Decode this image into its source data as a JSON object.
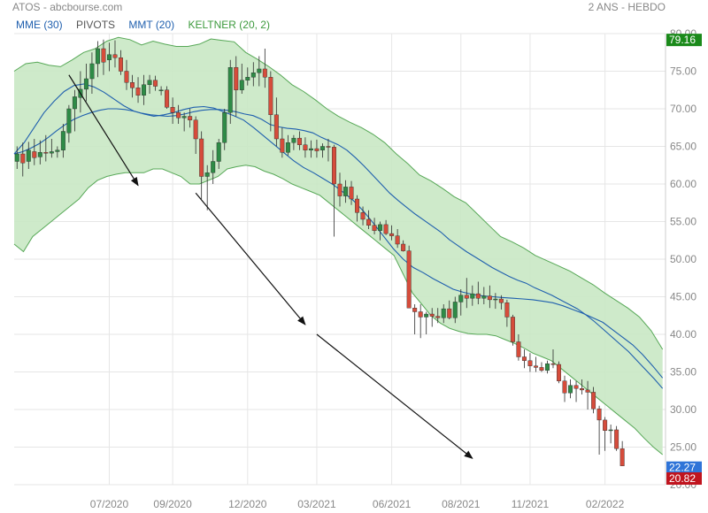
{
  "header": {
    "title": "ATOS - abcbourse.com",
    "period": "2 ANS - HEBDO"
  },
  "legend": [
    {
      "label": "MME (30)",
      "color": "#1f5fae"
    },
    {
      "label": "PIVOTS",
      "color": "#555555"
    },
    {
      "label": "MMT (20)",
      "color": "#1f5fae"
    },
    {
      "label": "KELTNER (20, 2)",
      "color": "#3d9a3d"
    }
  ],
  "price_labels": [
    {
      "value": "79.16",
      "color": "#1a8a1a"
    },
    {
      "value": "22.27",
      "color": "#2f74d8"
    },
    {
      "value": "20.82",
      "color": "#c0141e"
    }
  ],
  "chart_data": {
    "type": "candlestick",
    "title": "ATOS",
    "yaxis": {
      "min": 20,
      "max": 80,
      "position": "right",
      "ticks": [
        "20.00",
        "25.00",
        "30.00",
        "35.00",
        "40.00",
        "45.00",
        "50.00",
        "55.00",
        "60.00",
        "65.00",
        "70.00",
        "75.00",
        "80.00"
      ]
    },
    "xaxis": {
      "ticks": [
        "07/2020",
        "09/2020",
        "12/2020",
        "03/2021",
        "06/2021",
        "08/2021",
        "11/2021",
        "02/2022"
      ],
      "tick_week": [
        16,
        27,
        40,
        52,
        65,
        77,
        89,
        102
      ],
      "weeks": 113
    },
    "grid": true,
    "colors": {
      "up": "#2e8b46",
      "down": "#d64c3b",
      "band": "#c9e8c4",
      "band_line": "#57a857",
      "ma": "#1f5fae"
    },
    "candles_ohlc": [
      [
        63,
        65,
        62,
        64
      ],
      [
        64,
        65.5,
        61,
        62.8
      ],
      [
        63,
        65.6,
        62,
        64.5
      ],
      [
        64.3,
        66,
        62.5,
        63.5
      ],
      [
        63.6,
        65.8,
        62.6,
        64.2
      ],
      [
        64.2,
        66.5,
        63,
        64.1
      ],
      [
        64.1,
        66,
        63.5,
        64.3
      ],
      [
        64.3,
        65,
        63.5,
        64.5
      ],
      [
        64.5,
        68,
        63.5,
        67
      ],
      [
        66.8,
        70.5,
        65.5,
        70
      ],
      [
        70,
        72.5,
        67,
        71.6
      ],
      [
        71.5,
        75,
        69.5,
        72.6
      ],
      [
        72.6,
        76,
        71,
        74
      ],
      [
        74,
        77.5,
        72,
        76
      ],
      [
        76,
        79,
        74.2,
        78
      ],
      [
        78,
        79.2,
        74.5,
        76.2
      ],
      [
        76.5,
        78.8,
        75,
        77.2
      ],
      [
        77.2,
        79.1,
        75.5,
        76.8
      ],
      [
        76.8,
        77.8,
        74.5,
        75
      ],
      [
        75,
        76.5,
        72.5,
        73.5
      ],
      [
        73.5,
        74.5,
        71.5,
        72.8
      ],
      [
        72.8,
        74.2,
        70.8,
        71.8
      ],
      [
        71.8,
        74.5,
        70.5,
        73.2
      ],
      [
        73.2,
        74.5,
        72,
        73.8
      ],
      [
        73.8,
        74.4,
        72.4,
        73
      ],
      [
        72.4,
        73,
        71.8,
        72.5
      ],
      [
        72.5,
        73,
        70,
        70.2
      ],
      [
        70.2,
        71.5,
        68,
        69.5
      ],
      [
        69.5,
        70.5,
        68,
        68.8
      ],
      [
        68.8,
        69.5,
        67,
        69
      ],
      [
        69,
        70,
        67.5,
        68.5
      ],
      [
        68.5,
        69,
        64,
        66
      ],
      [
        66,
        67,
        58,
        61
      ],
      [
        61,
        62.5,
        56.5,
        61.5
      ],
      [
        61.5,
        64.5,
        60,
        63
      ],
      [
        63,
        66,
        62,
        65.5
      ],
      [
        65.5,
        70,
        64.5,
        69.5
      ],
      [
        69.5,
        76.5,
        68,
        75.5
      ],
      [
        75.5,
        77,
        69,
        72.5
      ],
      [
        72.5,
        76,
        72,
        73.8
      ],
      [
        73.8,
        75.5,
        73.1,
        74.2
      ],
      [
        74.2,
        76.2,
        73,
        74.8
      ],
      [
        74.8,
        77,
        73,
        75.3
      ],
      [
        75.3,
        78,
        72.8,
        74.2
      ],
      [
        74.2,
        75,
        67,
        69.2
      ],
      [
        69.2,
        71.5,
        65,
        66
      ],
      [
        66,
        67.5,
        63.5,
        64.2
      ],
      [
        64.2,
        66.5,
        63.8,
        65.5
      ],
      [
        65.5,
        66.5,
        64.5,
        66.1
      ],
      [
        66.1,
        67,
        64.5,
        65.2
      ],
      [
        65.2,
        66.2,
        63.5,
        64.5
      ],
      [
        64.5,
        65.8,
        63.5,
        64.7
      ],
      [
        64.7,
        65.9,
        63.5,
        64.4
      ],
      [
        64.5,
        65.4,
        63.5,
        65
      ],
      [
        65,
        66,
        63,
        64.9
      ],
      [
        64.9,
        65.2,
        53,
        60
      ],
      [
        60,
        61.5,
        57,
        58.4
      ],
      [
        58.4,
        60.5,
        57.5,
        59.6
      ],
      [
        59.6,
        60.4,
        57.2,
        58
      ],
      [
        58,
        58.5,
        55,
        56.2
      ],
      [
        56.2,
        57,
        54.5,
        55.3
      ],
      [
        55.3,
        56.5,
        54,
        54.5
      ],
      [
        54.5,
        55.5,
        53.3,
        53.8
      ],
      [
        53.8,
        55,
        52.5,
        54.6
      ],
      [
        54.6,
        55.2,
        53.2,
        53.4
      ],
      [
        53.4,
        54.5,
        52.5,
        53.1
      ],
      [
        53.1,
        54,
        51.5,
        52
      ],
      [
        52,
        52.5,
        51,
        51.1
      ],
      [
        51.1,
        51.8,
        45,
        43.5
      ],
      [
        43.5,
        44,
        40,
        43
      ],
      [
        43,
        44,
        39.5,
        42.3
      ],
      [
        42.3,
        43,
        40,
        42.7
      ],
      [
        42.7,
        43.5,
        41,
        42.4
      ],
      [
        42.4,
        43.5,
        41.5,
        42.2
      ],
      [
        42.2,
        44,
        41.5,
        43.4
      ],
      [
        43.4,
        44.5,
        42,
        42.2
      ],
      [
        42.2,
        45,
        41.5,
        44.3
      ],
      [
        44.3,
        46,
        42.5,
        45.2
      ],
      [
        45.2,
        47.5,
        43.5,
        44.8
      ],
      [
        44.8,
        46.5,
        43.8,
        45.4
      ],
      [
        45.4,
        47,
        44,
        44.8
      ],
      [
        44.8,
        46.3,
        44,
        45.1
      ],
      [
        45.1,
        46.5,
        43.5,
        44.6
      ],
      [
        44.6,
        45.5,
        43.4,
        44.7
      ],
      [
        44.7,
        45.2,
        43.3,
        44.2
      ],
      [
        44.2,
        44.6,
        41,
        42.3
      ],
      [
        42.3,
        42.6,
        38.5,
        39
      ],
      [
        39,
        40,
        36.5,
        37
      ],
      [
        37,
        38,
        35.5,
        36.5
      ],
      [
        36.5,
        37.5,
        35,
        35.8
      ],
      [
        35.8,
        37,
        35,
        35.6
      ],
      [
        35.6,
        36.3,
        35,
        35.2
      ],
      [
        35.2,
        36.5,
        34.8,
        36.1
      ],
      [
        36.1,
        38,
        35.5,
        36
      ],
      [
        36,
        36.4,
        33.5,
        33.8
      ],
      [
        33.8,
        34.5,
        31,
        32.2
      ],
      [
        32.2,
        34,
        31.5,
        33.2
      ],
      [
        33.2,
        33.8,
        31,
        32.8
      ],
      [
        32.8,
        34,
        32,
        32.6
      ],
      [
        32.6,
        33.8,
        30,
        32.3
      ],
      [
        32.3,
        33,
        29.5,
        30.1
      ],
      [
        30.1,
        30.5,
        24,
        28.6
      ],
      [
        28.6,
        29,
        24.5,
        27.2
      ],
      [
        27.2,
        28,
        25.5,
        27.3
      ],
      [
        27.3,
        27.8,
        24.5,
        24.8
      ],
      [
        24.8,
        25.8,
        22.5,
        22.5
      ]
    ],
    "series": [
      {
        "name": "MME (30)",
        "values": [
          64,
          64.3,
          64.8,
          65.4,
          66.2,
          67.1,
          67.9,
          68.6,
          69.1,
          69.5,
          69.8,
          70,
          70,
          69.9,
          69.7,
          69.4,
          69.2,
          69.1,
          69,
          69.1,
          69.3,
          69.6,
          69.8,
          69.9,
          69.9,
          69.8,
          69.6,
          69.3,
          69.1,
          68.6,
          67.9,
          67.6,
          67.4,
          67.3,
          67.1,
          66.8,
          66.2,
          65.7,
          65.2,
          64.5,
          63.5,
          62.4,
          61.2,
          60,
          58.8,
          57.8,
          56.9,
          56,
          55.2,
          54.4,
          53.6,
          52.6,
          51.8,
          51,
          50.3,
          49.6,
          48.9,
          48.3,
          47.7,
          47.2,
          46.8,
          46.2,
          45.7,
          45.2,
          44.6,
          44,
          43.4,
          42.6,
          41.7,
          40.7,
          39.7,
          38.7,
          37.7,
          36.5,
          35.3,
          34.1,
          32.8
        ]
      },
      {
        "name": "MMT (20)",
        "values": [
          64,
          65.5,
          67.5,
          69.5,
          71,
          72.3,
          73.1,
          73.3,
          72.9,
          72.2,
          71.3,
          70.4,
          69.7,
          69.3,
          69,
          69.2,
          69.5,
          69.9,
          70.2,
          70.3,
          70.1,
          69.6,
          69.1,
          68.5,
          67.5,
          66.4,
          65.3,
          64.2,
          63.1,
          62.2,
          61.5,
          60.7,
          59.9,
          58.9,
          57.8,
          56.4,
          54.8,
          53.1,
          51.4,
          50,
          48.9,
          48.2,
          47.4,
          46.7,
          46,
          45.6,
          45.3,
          45.1,
          45,
          44.9,
          44.8,
          44.7,
          44.6,
          44.4,
          44.2,
          43.8,
          43.3,
          42.8,
          42.2,
          41.6,
          40.6,
          39.6,
          38.6,
          37.3,
          35.8,
          34.2
        ]
      },
      {
        "name": "KELTNER upper",
        "values": [
          75,
          76,
          76.2,
          75.8,
          75.6,
          76.5,
          77.5,
          78,
          79,
          79.5,
          79.2,
          78.5,
          79,
          78.6,
          78.3,
          78.3,
          78.6,
          79.3,
          79.1,
          78.9,
          77.5,
          76.6,
          75.6,
          74.5,
          73.2,
          72.3,
          71.2,
          70,
          69,
          68.2,
          67.5,
          66.6,
          65.5,
          64,
          62.7,
          61.2,
          60.4,
          59.4,
          58.3,
          57.5,
          56,
          54.5,
          53,
          52.3,
          51.5,
          50.5,
          49.8,
          49.1,
          48.4,
          47.5,
          46.6,
          45.5,
          44.5,
          43.5,
          42.3,
          40.5,
          38
        ]
      },
      {
        "name": "KELTNER lower",
        "values": [
          52,
          51,
          53,
          54,
          55,
          56,
          57,
          58,
          59.5,
          60.5,
          61,
          61.3,
          61.5,
          61.5,
          61.5,
          62,
          62,
          61.5,
          61,
          60,
          60,
          60.5,
          61,
          62,
          62.3,
          62.5,
          62.3,
          61.7,
          61.3,
          60.7,
          60,
          59.5,
          59,
          58.5,
          57.5,
          56.5,
          55.5,
          54.5,
          53.5,
          52.5,
          51.5,
          50.5,
          48,
          45.5,
          44,
          42.5,
          41.5,
          40.8,
          40.4,
          40.1,
          40,
          40,
          39.8,
          39.3,
          38.8,
          38.2,
          37.5,
          37,
          36.5,
          35.5,
          34.5,
          33.5,
          32.5,
          31.5,
          30.5,
          29.5,
          28.5,
          27.5,
          26.2,
          25,
          24
        ]
      }
    ],
    "annotations": [
      {
        "type": "arrow",
        "from": [
          9,
          74.5
        ],
        "to": [
          21,
          59.8
        ]
      },
      {
        "type": "arrow",
        "from": [
          31,
          58.8
        ],
        "to": [
          50,
          41.3
        ]
      },
      {
        "type": "arrow",
        "from": [
          52,
          40.0
        ],
        "to": [
          79,
          23.5
        ]
      }
    ]
  }
}
